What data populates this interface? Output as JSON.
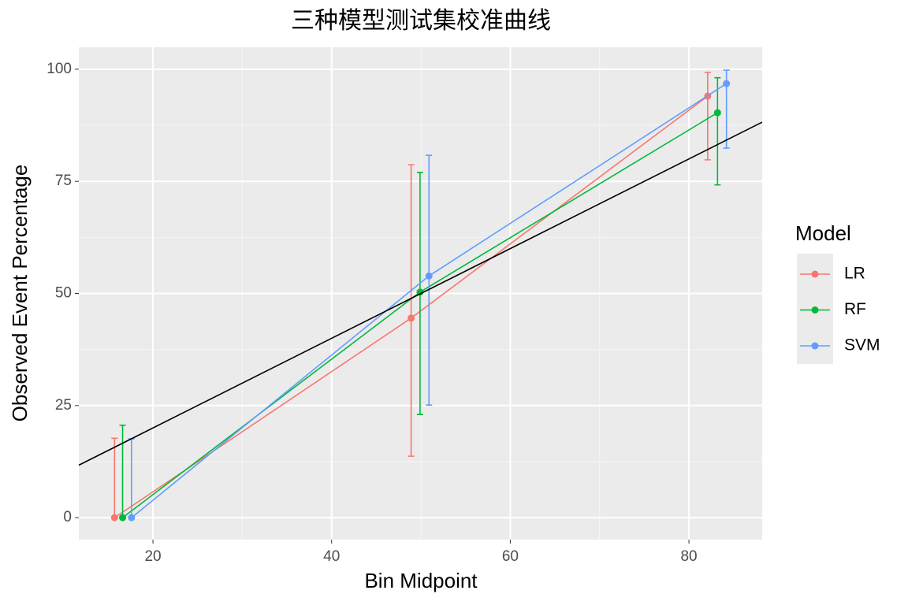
{
  "chart_data": {
    "type": "errorline",
    "title": "三种模型测试集校准曲线",
    "x_label": "Bin Midpoint",
    "y_label": "Observed Event Percentage",
    "legend_title": "Model",
    "legend_position": "right",
    "series": [
      {
        "name": "LR",
        "color": "#F8766D",
        "x": [
          15.7,
          48.9,
          82.1
        ],
        "values": [
          0,
          44.5,
          94.0
        ],
        "lower": [
          0,
          13.7,
          79.8
        ],
        "upper": [
          17.7,
          78.7,
          99.3
        ]
      },
      {
        "name": "RF",
        "color": "#00BA38",
        "x": [
          16.6,
          49.9,
          83.2
        ],
        "values": [
          0,
          50.3,
          90.3
        ],
        "lower": [
          0,
          23.0,
          74.2
        ],
        "upper": [
          20.6,
          77.0,
          98.1
        ]
      },
      {
        "name": "SVM",
        "color": "#619CFF",
        "x": [
          17.6,
          50.9,
          84.2
        ],
        "values": [
          0,
          53.9,
          96.8
        ],
        "lower": [
          0,
          25.1,
          82.4
        ],
        "upper": [
          17.6,
          80.8,
          99.8
        ]
      }
    ],
    "reference_line": {
      "slope": 1,
      "intercept": 0,
      "color": "#000000"
    },
    "xlim": [
      11.7,
      88.2
    ],
    "xticks": [
      20,
      40,
      60,
      80
    ],
    "ylim": [
      -4.9,
      104.9
    ],
    "yticks": [
      0,
      25,
      50,
      75,
      100
    ],
    "grid": true
  }
}
